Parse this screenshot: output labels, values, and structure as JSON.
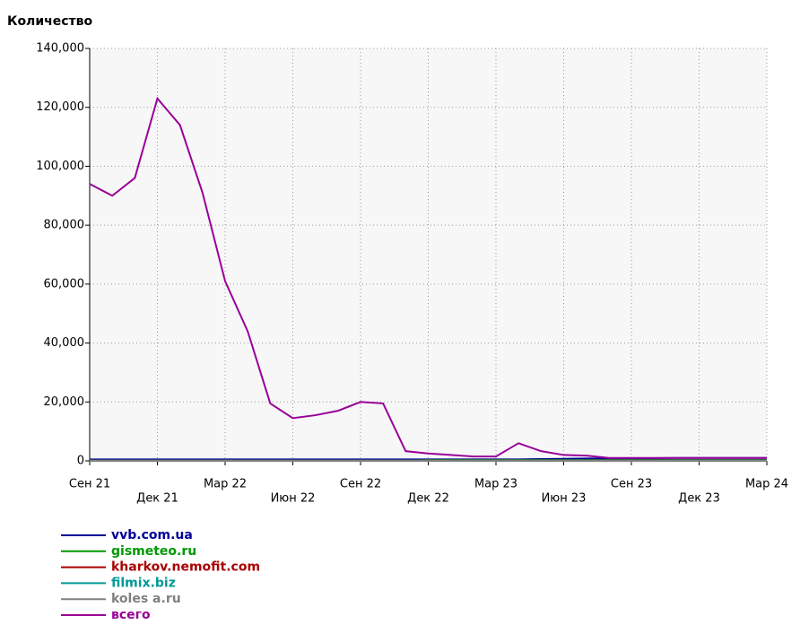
{
  "chart_data": {
    "type": "line",
    "title": "Количество",
    "categories": [
      "Сен 21",
      null,
      null,
      "Дек 21",
      null,
      null,
      "Мар 22",
      null,
      null,
      "Июн 22",
      null,
      null,
      "Сен 22",
      null,
      null,
      "Дек 22",
      null,
      null,
      "Мар 23",
      null,
      null,
      "Июн 23",
      null,
      null,
      "Сен 23",
      null,
      null,
      "Дек 23",
      null,
      null,
      "Мар 24"
    ],
    "ylim": [
      0,
      140000
    ],
    "yticks": [
      0,
      {
        "value": 20000,
        "label": "20,000"
      },
      {
        "value": 40000,
        "label": "40,000"
      },
      {
        "value": 60000,
        "label": "60,000"
      },
      {
        "value": 80000,
        "label": "80,000"
      },
      {
        "value": 100000,
        "label": "100,000"
      },
      {
        "value": 120000,
        "label": "120,000"
      },
      {
        "value": 140000,
        "label": "140,000"
      }
    ],
    "grid": true,
    "series": [
      {
        "name": "vvb.com.ua",
        "color": "#000099",
        "values": [
          500,
          500,
          500,
          500,
          500,
          500,
          500,
          500,
          500,
          500,
          500,
          500,
          500,
          500,
          500,
          500,
          500,
          500,
          500,
          500,
          600,
          700,
          800,
          800,
          900,
          900,
          1000,
          1000,
          1000,
          1000,
          1000
        ]
      },
      {
        "name": "gismeteo.ru",
        "color": "#009900",
        "values": [
          0,
          0,
          0,
          0,
          0,
          0,
          0,
          0,
          0,
          0,
          0,
          0,
          0,
          0,
          0,
          300,
          300,
          300,
          300,
          300,
          300,
          300,
          300,
          300,
          300,
          300,
          300,
          300,
          300,
          300,
          300
        ]
      },
      {
        "name": "kharkov.nemofit.com",
        "color": "#aa0000",
        "values": [
          200,
          200,
          200,
          200,
          200,
          200,
          200,
          200,
          200,
          200,
          200,
          200,
          200,
          200,
          200,
          200,
          200,
          200,
          200,
          200,
          200,
          200,
          200,
          200,
          200,
          200,
          200,
          200,
          200,
          200,
          200
        ]
      },
      {
        "name": "filmix.biz",
        "color": "#009999",
        "values": [
          100,
          100,
          100,
          100,
          100,
          100,
          100,
          100,
          100,
          100,
          100,
          100,
          100,
          100,
          100,
          100,
          100,
          100,
          100,
          100,
          100,
          100,
          100,
          100,
          100,
          100,
          100,
          100,
          100,
          100,
          100
        ]
      },
      {
        "name": "koles a.ru",
        "color": "#808080",
        "values": [
          0,
          0,
          0,
          0,
          0,
          0,
          0,
          0,
          0,
          0,
          0,
          0,
          0,
          0,
          0,
          0,
          0,
          0,
          0,
          0,
          0,
          0,
          0,
          0,
          0,
          0,
          0,
          0,
          0,
          0,
          0
        ]
      },
      {
        "name": "всего",
        "color": "#990099",
        "values": [
          94000,
          90000,
          96000,
          123000,
          114000,
          91000,
          61000,
          44000,
          19500,
          14500,
          15500,
          17000,
          20000,
          19500,
          3300,
          2500,
          2000,
          1500,
          1500,
          6000,
          3300,
          2000,
          1800,
          1000,
          1000,
          1000,
          1000,
          1000,
          1000,
          1000,
          1000
        ]
      }
    ]
  }
}
